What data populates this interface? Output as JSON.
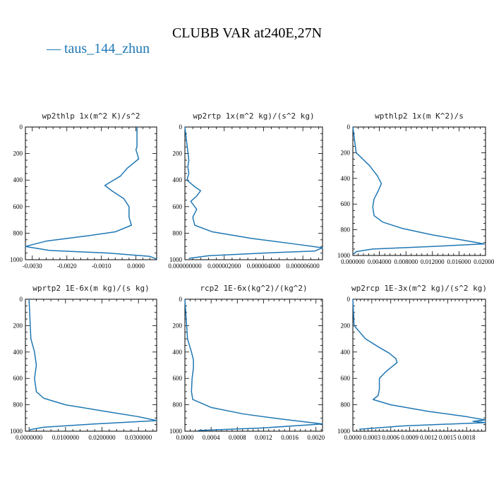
{
  "figure": {
    "title": "CLUBB VAR at240E,27N",
    "legend": "— taus_144_zhun",
    "line_color": "#1f77b4"
  },
  "chart_data": [
    {
      "type": "line",
      "title": "wp2thlp   1x(m^2 K)/s^2",
      "xlim": [
        -0.0032,
        0.0006
      ],
      "ylim": [
        1000,
        0
      ],
      "xticks": [
        -0.003,
        -0.002,
        -0.001,
        0.0
      ],
      "xtick_labels": [
        "-0.0030",
        "-0.0020",
        "-0.0010",
        "0.0000"
      ],
      "yticks": [
        0,
        200,
        400,
        600,
        800,
        1000
      ],
      "ytick_labels": [
        "0",
        "200",
        "400",
        "600",
        "800",
        "1000"
      ],
      "series": [
        {
          "y": [
            0,
            150,
            170,
            240,
            310,
            370,
            440,
            480,
            540,
            600,
            680,
            740,
            790,
            820,
            860,
            900,
            930,
            950,
            975,
            995
          ],
          "x": [
            3e-05,
            3e-05,
            0.0,
            8e-05,
            -0.00025,
            -0.00045,
            -0.0009,
            -0.0007,
            -0.00035,
            -0.0002,
            -0.0002,
            -0.00013,
            -0.0006,
            -0.0014,
            -0.0026,
            -0.0032,
            -0.0025,
            -0.0008,
            0.0004,
            0.0006
          ]
        }
      ]
    },
    {
      "type": "line",
      "title": "wp2rtp   1x(m^2 kg)/(s^2 kg)",
      "xlim": [
        0.0,
        7e-06
      ],
      "ylim": [
        1000,
        0
      ],
      "xticks": [
        0.0,
        2e-06,
        4e-06,
        6e-06
      ],
      "xtick_labels": [
        "0.000000000",
        "0.000002000",
        "0.000004000",
        "0.000006000"
      ],
      "yticks": [
        0,
        200,
        400,
        600,
        800,
        1000
      ],
      "ytick_labels": [
        "0",
        "200",
        "400",
        "600",
        "800",
        "1000"
      ],
      "series": [
        {
          "y": [
            0,
            250,
            300,
            350,
            400,
            450,
            480,
            520,
            560,
            620,
            680,
            740,
            790,
            840,
            880,
            910,
            935,
            950,
            970,
            990
          ],
          "x": [
            0.0,
            2e-07,
            1.5e-07,
            2e-07,
            1e-07,
            5e-07,
            8e-07,
            6e-07,
            3e-07,
            6e-07,
            4e-07,
            5e-07,
            1.4e-06,
            3.4e-06,
            5.5e-06,
            7e-06,
            6.6e-06,
            4e-06,
            1.2e-06,
            2e-07
          ]
        }
      ]
    },
    {
      "type": "line",
      "title": "wpthlp2   1x(m K^2)/s",
      "xlim": [
        0.0,
        0.02
      ],
      "ylim": [
        1000,
        0
      ],
      "xticks": [
        0.0,
        0.004,
        0.008,
        0.012,
        0.016,
        0.02
      ],
      "xtick_labels": [
        "0.000000",
        "0.004000",
        "0.008000",
        "0.012000",
        "0.016000",
        "0.020000"
      ],
      "yticks": [
        0,
        200,
        400,
        600,
        800,
        1000
      ],
      "ytick_labels": [
        "0",
        "200",
        "400",
        "600",
        "800",
        "1000"
      ],
      "series": [
        {
          "y": [
            0,
            200,
            300,
            380,
            440,
            500,
            560,
            620,
            690,
            740,
            790,
            840,
            880,
            910,
            930,
            950,
            970,
            990
          ],
          "x": [
            0.0,
            0.0005,
            0.0025,
            0.0037,
            0.0043,
            0.0038,
            0.0032,
            0.003,
            0.0032,
            0.0045,
            0.0075,
            0.012,
            0.0165,
            0.0198,
            0.012,
            0.003,
            0.0005,
            0.0001
          ]
        }
      ]
    },
    {
      "type": "line",
      "title": "wprtp2   1E-6x(m kg)/(s kg)",
      "xlim": [
        -0.001,
        0.035
      ],
      "ylim": [
        1000,
        0
      ],
      "xticks": [
        0.0,
        0.01,
        0.02,
        0.03
      ],
      "xtick_labels": [
        "0.0000000",
        "0.0100000",
        "0.0200000",
        "0.0300000"
      ],
      "yticks": [
        0,
        200,
        400,
        600,
        800,
        1000
      ],
      "ytick_labels": [
        "0",
        "200",
        "400",
        "600",
        "800",
        "1000"
      ],
      "series": [
        {
          "y": [
            0,
            300,
            400,
            500,
            600,
            700,
            750,
            800,
            850,
            890,
            920,
            945,
            970,
            990
          ],
          "x": [
            0.0,
            0.0005,
            0.0015,
            0.002,
            0.0015,
            0.002,
            0.004,
            0.01,
            0.021,
            0.03,
            0.035,
            0.018,
            0.004,
            0.0
          ]
        }
      ]
    },
    {
      "type": "line",
      "title": "rcp2   1E-6x(kg^2)/(kg^2)",
      "xlim": [
        0.0,
        0.0021
      ],
      "ylim": [
        1000,
        0
      ],
      "xticks": [
        0.0,
        0.0004,
        0.0008,
        0.0012,
        0.0016,
        0.002
      ],
      "xtick_labels": [
        "0.0000",
        "0.0004",
        "0.0008",
        "0.0012",
        "0.0016",
        "0.0020"
      ],
      "yticks": [
        0,
        200,
        400,
        600,
        800,
        1000
      ],
      "ytick_labels": [
        "0",
        "200",
        "400",
        "600",
        "800",
        "1000"
      ],
      "series": [
        {
          "y": [
            0,
            300,
            400,
            460,
            520,
            600,
            700,
            760,
            820,
            870,
            910,
            945,
            975,
            995
          ],
          "x": [
            0.0,
            4e-05,
            0.0001,
            0.00013,
            0.00013,
            0.00011,
            0.0001,
            0.00012,
            0.0004,
            0.0009,
            0.0015,
            0.0021,
            0.0012,
            0.0002
          ]
        }
      ]
    },
    {
      "type": "line",
      "title": "wp2rcp   1E-3x(m^2 kg)/(s^2 kg)",
      "xlim": [
        0.0,
        0.0021
      ],
      "ylim": [
        1000,
        0
      ],
      "xticks": [
        0.0,
        0.0003,
        0.0006,
        0.0009,
        0.0012,
        0.0015,
        0.0018
      ],
      "xtick_labels": [
        "0.0000",
        "0.0003",
        "0.0006",
        "0.0009",
        "0.0012",
        "0.0015",
        "0.0018"
      ],
      "yticks": [
        0,
        200,
        400,
        600,
        800,
        1000
      ],
      "ytick_labels": [
        "0",
        "200",
        "400",
        "600",
        "800",
        "1000"
      ],
      "series": [
        {
          "y": [
            0,
            200,
            300,
            360,
            410,
            450,
            480,
            550,
            600,
            680,
            730,
            760,
            800,
            850,
            890,
            915,
            925,
            935,
            960,
            985
          ],
          "x": [
            0.0,
            2e-05,
            0.0002,
            0.0004,
            0.00058,
            0.00068,
            0.0007,
            0.00052,
            0.00042,
            0.00042,
            0.0004,
            0.00032,
            0.0006,
            0.0012,
            0.0018,
            0.0021,
            0.0019,
            0.0021,
            0.0008,
            0.0001
          ]
        }
      ]
    }
  ]
}
